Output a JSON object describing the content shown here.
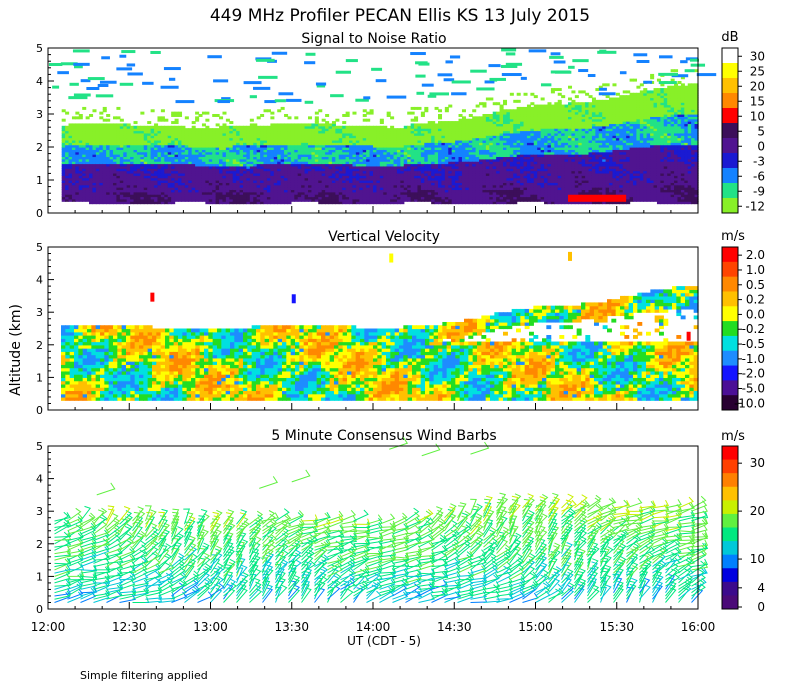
{
  "title": "449 MHz Profiler PECAN Ellis KS 13 July 2015",
  "footnote": "Simple filtering applied",
  "ylabel": "Altitude (km)",
  "xlabel": "UT  (CDT - 5)",
  "x_ticks": [
    "12:00",
    "12:30",
    "13:00",
    "13:30",
    "14:00",
    "14:30",
    "15:00",
    "15:30",
    "16:00"
  ],
  "y_ticks": [
    "0",
    "1",
    "2",
    "3",
    "4",
    "5"
  ],
  "chart_data": [
    {
      "type": "heatmap",
      "title": "Signal to Noise Ratio",
      "colorbar_unit": "dB",
      "colorbar_labels": [
        "30",
        "25",
        "20",
        "15",
        "10",
        "5",
        "0",
        "-3",
        "-6",
        "-9",
        "-12"
      ],
      "colors": [
        "#ffffff",
        "#ffff00",
        "#ffc000",
        "#ff8800",
        "#ff0000",
        "#3c0f5a",
        "#501490",
        "#1a1ad2",
        "#1482ff",
        "#22e286",
        "#88f028"
      ],
      "x_range": [
        "12:00",
        "16:00"
      ],
      "ylim": [
        0,
        5
      ]
    },
    {
      "type": "heatmap",
      "title": "Vertical Velocity",
      "colorbar_unit": "m/s",
      "colorbar_labels": [
        "2.0",
        "1.0",
        "0.5",
        "0.2",
        "0.0",
        "-0.2",
        "-0.5",
        "-1.0",
        "-2.0",
        "-5.0",
        "-10.0"
      ],
      "colors": [
        "#ff0000",
        "#ff4400",
        "#ff8800",
        "#ffc000",
        "#ffff00",
        "#22dd22",
        "#00e0e0",
        "#1e8cff",
        "#1414ff",
        "#4b0f96",
        "#280032"
      ],
      "x_range": [
        "12:00",
        "16:00"
      ],
      "ylim": [
        0,
        5
      ]
    },
    {
      "type": "scatter",
      "title": "5 Minute Consensus Wind Barbs",
      "colorbar_unit": "m/s",
      "colorbar_labels": [
        "30",
        "20",
        "10",
        "4",
        "0"
      ],
      "colors": [
        "#ff0000",
        "#ff4000",
        "#ff8000",
        "#ffc000",
        "#c8f000",
        "#60f040",
        "#00e880",
        "#00c8d8",
        "#0080ff",
        "#0000e0",
        "#3c0a8c",
        "#4b0a78"
      ],
      "x_range": [
        "12:00",
        "16:00"
      ],
      "ylim": [
        0,
        5
      ]
    }
  ]
}
